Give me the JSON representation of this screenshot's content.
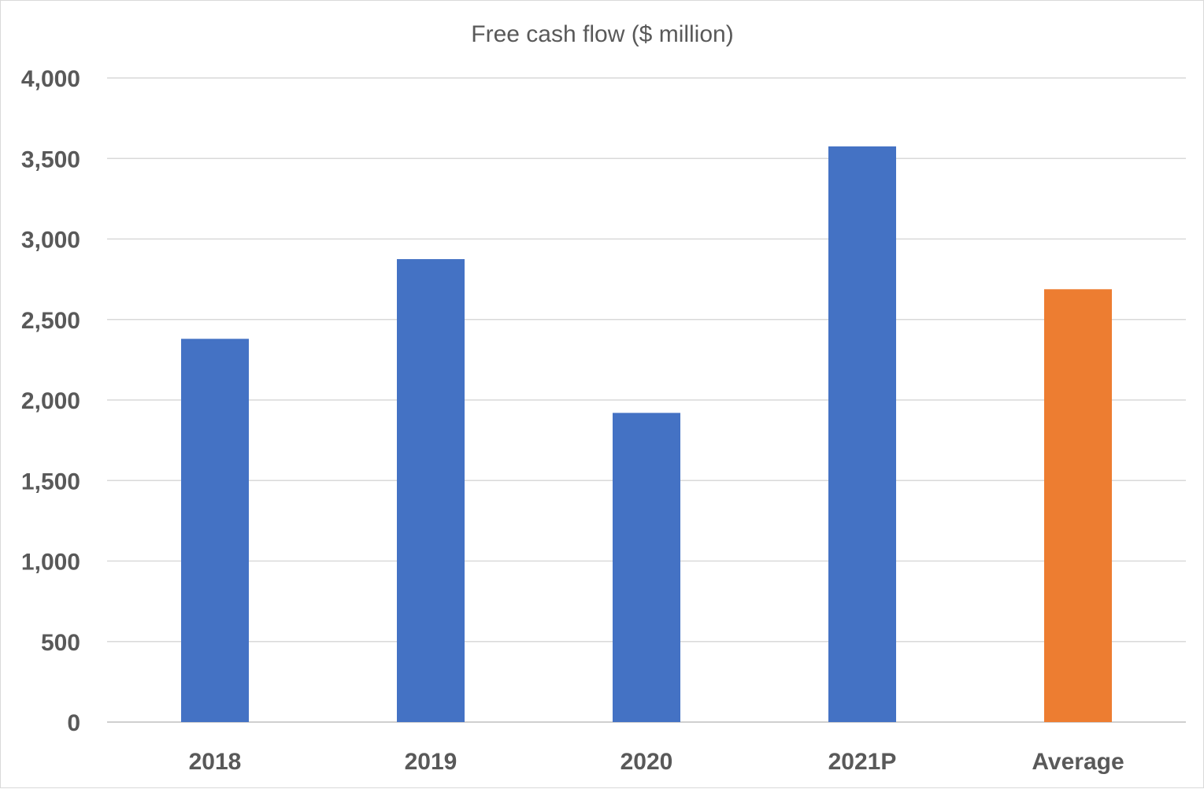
{
  "chart_data": {
    "type": "bar",
    "title": "Free cash flow ($ million)",
    "categories": [
      "2018",
      "2019",
      "2020",
      "2021P",
      "Average"
    ],
    "values": [
      2380,
      2875,
      1920,
      3575,
      2688
    ],
    "bar_colors": [
      "#4472C4",
      "#4472C4",
      "#4472C4",
      "#4472C4",
      "#ED7D31"
    ],
    "ylim": [
      0,
      4000
    ],
    "yticks": [
      0,
      500,
      1000,
      1500,
      2000,
      2500,
      3000,
      3500,
      4000
    ],
    "ytick_labels": [
      "0",
      "500",
      "1,000",
      "1,500",
      "2,000",
      "2,500",
      "3,000",
      "3,500",
      "4,000"
    ],
    "xlabel": "",
    "ylabel": "",
    "grid": true,
    "legend": "none"
  }
}
